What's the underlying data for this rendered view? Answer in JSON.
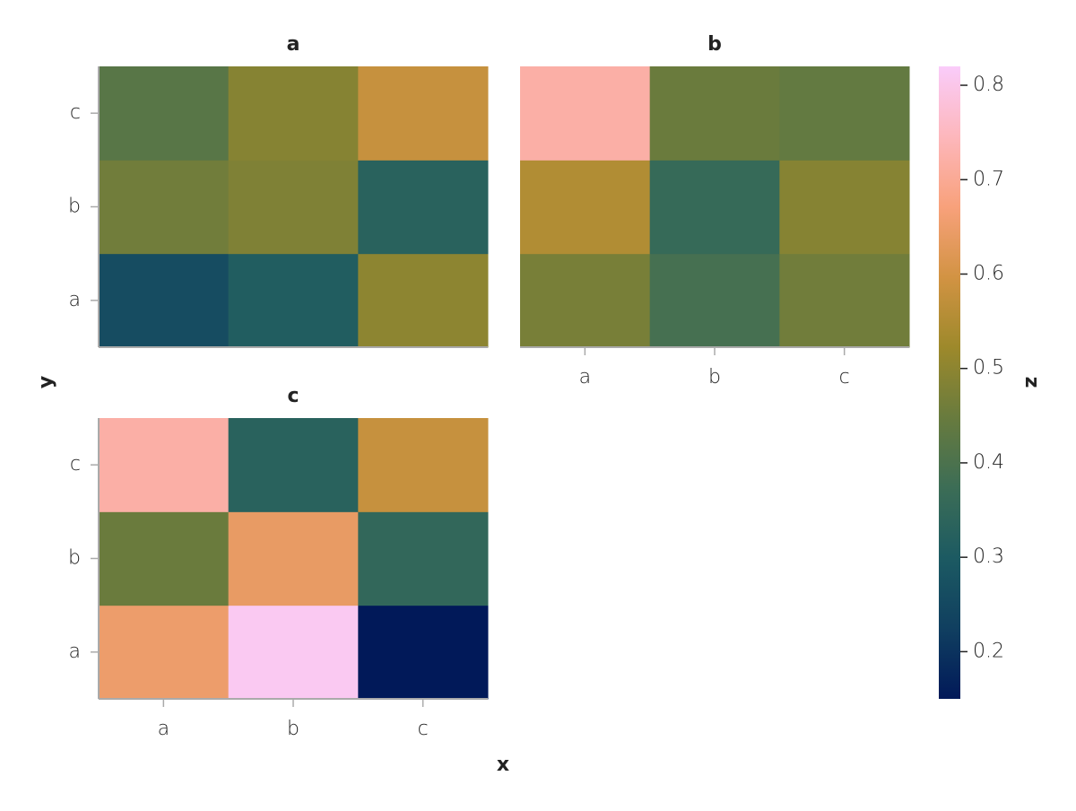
{
  "chart_data": {
    "type": "heatmap",
    "x_label": "x",
    "y_label": "y",
    "colorbar_label": "z",
    "x_categories": [
      "a",
      "b",
      "c"
    ],
    "y_categories": [
      "a",
      "b",
      "c"
    ],
    "panels": [
      {
        "title": "a",
        "values": [
          [
            0.26,
            0.31,
            0.5
          ],
          [
            0.46,
            0.48,
            0.33
          ],
          [
            0.42,
            0.49,
            0.58
          ]
        ]
      },
      {
        "title": "b",
        "values": [
          [
            0.47,
            0.39,
            0.46
          ],
          [
            0.55,
            0.36,
            0.49
          ],
          [
            0.72,
            0.45,
            0.44
          ]
        ]
      },
      {
        "title": "c",
        "values": [
          [
            0.65,
            0.81,
            0.15
          ],
          [
            0.45,
            0.64,
            0.35
          ],
          [
            0.72,
            0.33,
            0.58
          ]
        ]
      }
    ],
    "zlim": [
      0.15,
      0.82
    ],
    "zticks": [
      0.2,
      0.3,
      0.4,
      0.5,
      0.6,
      0.7,
      0.8
    ],
    "colormap": [
      "#011959",
      "#103f60",
      "#1c5a62",
      "#3c6d56",
      "#687b3e",
      "#9d892b",
      "#d29343",
      "#f8a17b",
      "#fdb7bc",
      "#faccfa"
    ]
  }
}
